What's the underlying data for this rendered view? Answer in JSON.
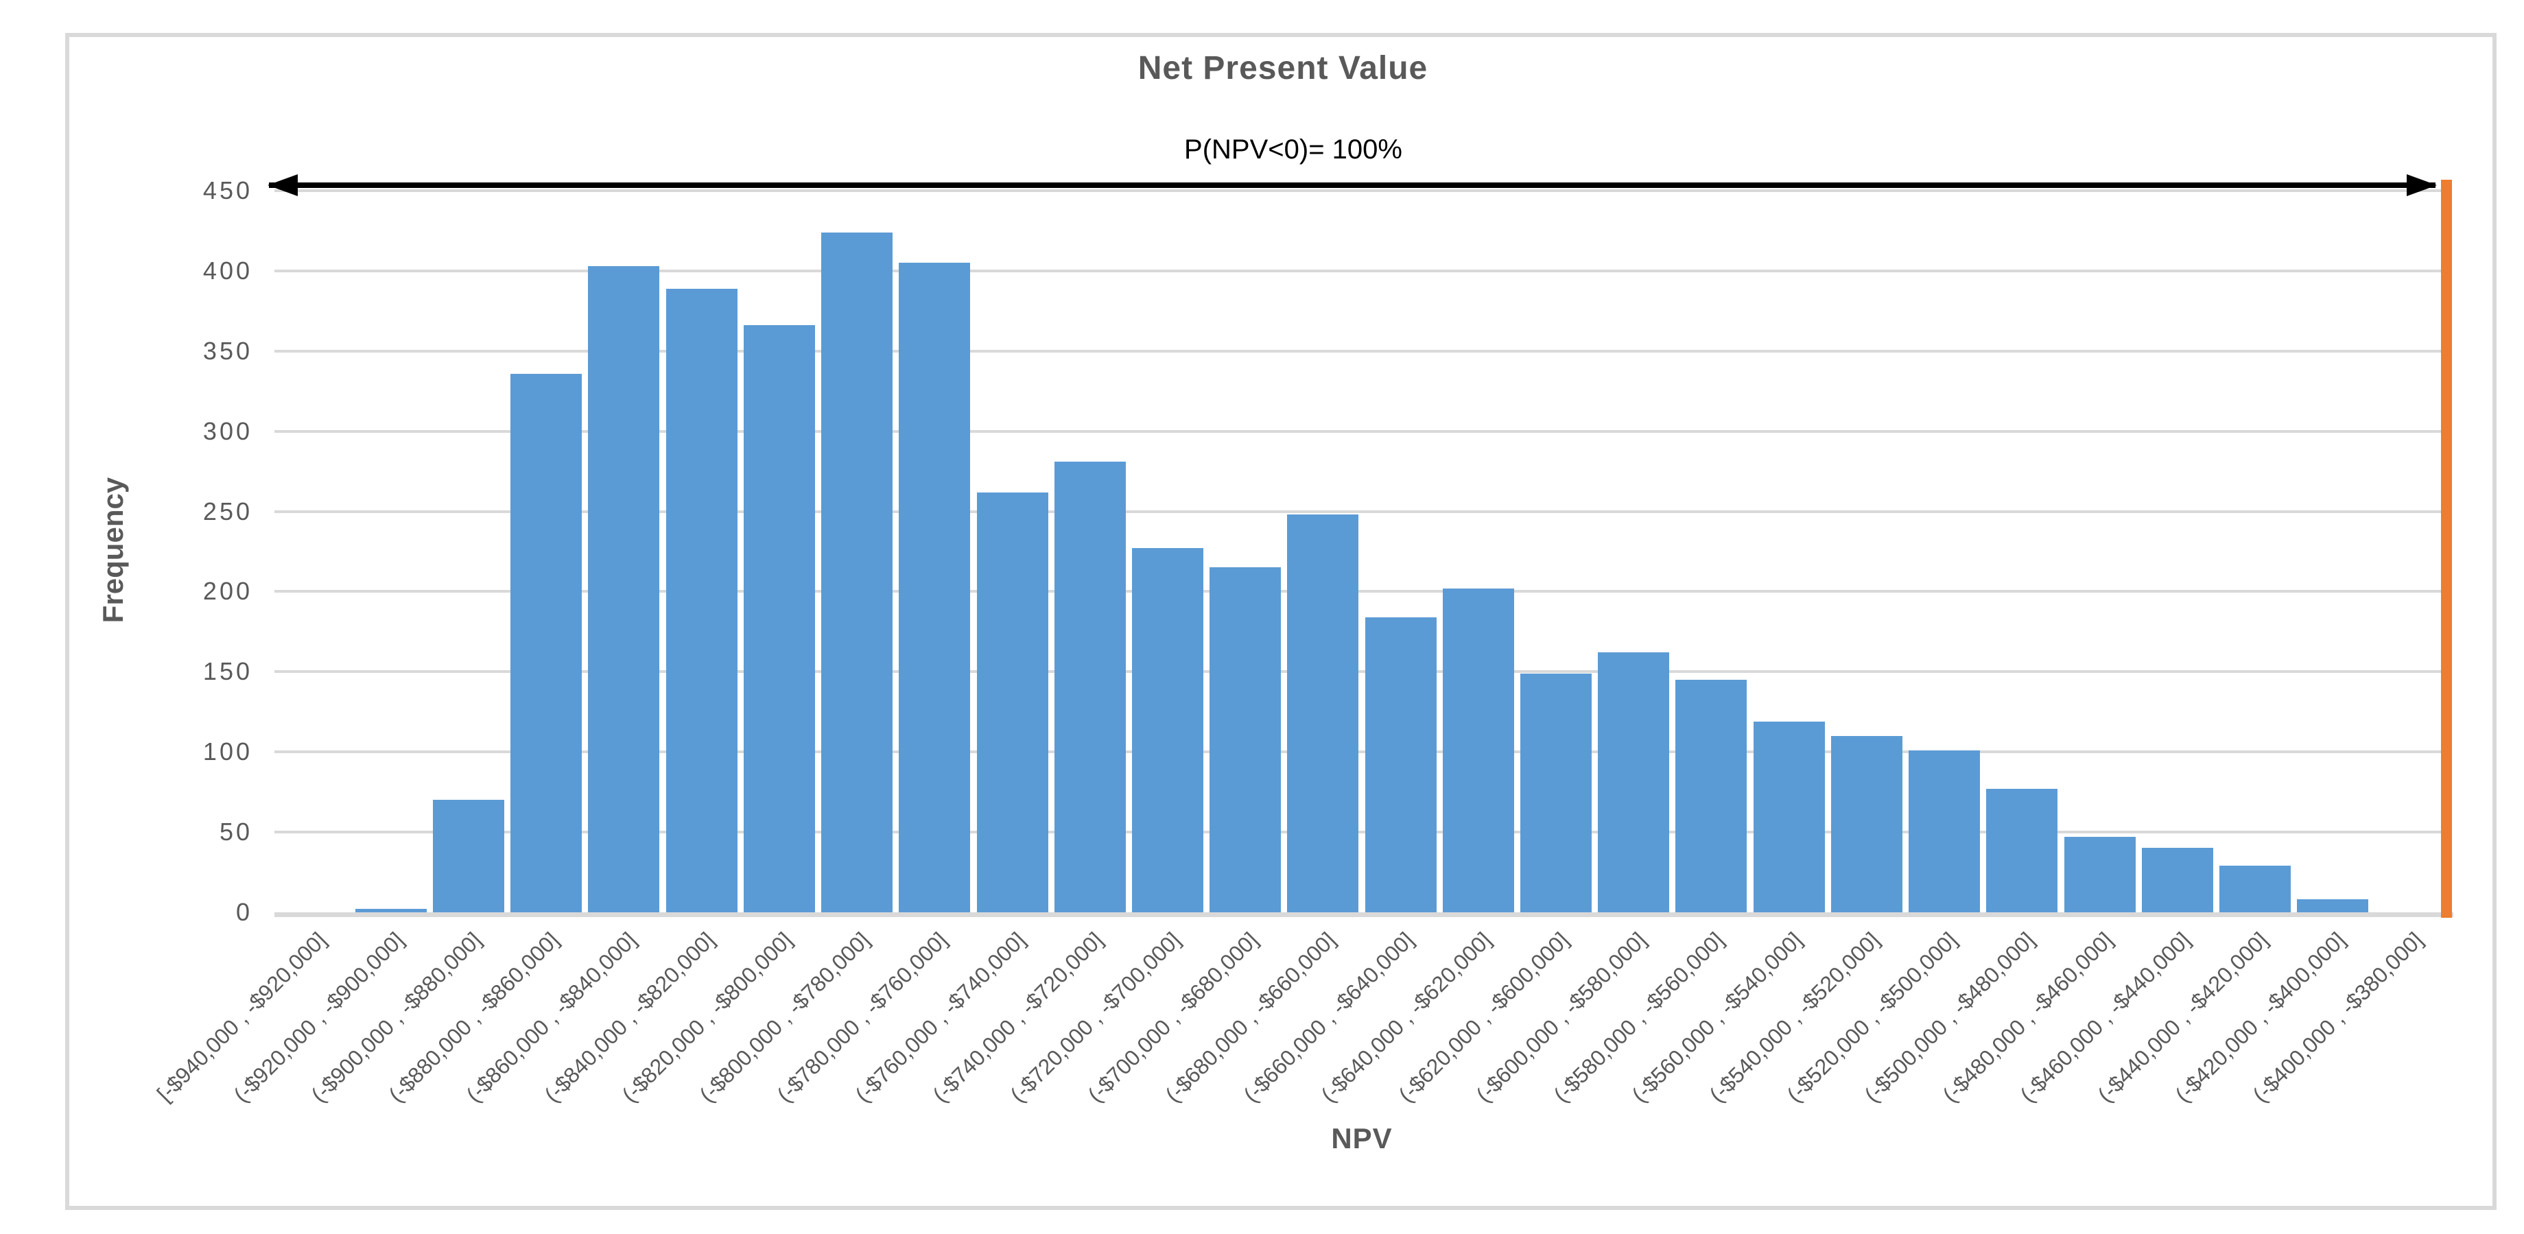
{
  "title": "Net Present Value",
  "annotation": "P(NPV<0)= 100%",
  "colors": {
    "bar": "#5B9BD5",
    "marker_line": "#ED7D31",
    "gridline": "#D9D9D9",
    "text": "#595959",
    "arrow": "#000000"
  },
  "chart_data": {
    "type": "bar",
    "title": "Net Present Value",
    "subtitle": "",
    "xlabel": "NPV",
    "ylabel": "Frequency",
    "annotation": "P(NPV<0)= 100%",
    "ylim": [
      0,
      450
    ],
    "yticks": [
      0,
      50,
      100,
      150,
      200,
      250,
      300,
      350,
      400,
      450
    ],
    "grid": true,
    "legend": "none",
    "marker": {
      "type": "vertical-line",
      "position": "right-edge-of-plot",
      "color": "#ED7D31"
    },
    "arrow_annotation": {
      "type": "double-headed-horizontal-arrow",
      "at_y": 450,
      "span": "full-plot-width",
      "label": "P(NPV<0)= 100%"
    },
    "categories": [
      "[-$940,000 , -$920,000]",
      "(-$920,000 , -$900,000]",
      "(-$900,000 , -$880,000]",
      "(-$880,000 , -$860,000]",
      "(-$860,000 , -$840,000]",
      "(-$840,000 , -$820,000]",
      "(-$820,000 , -$800,000]",
      "(-$800,000 , -$780,000]",
      "(-$780,000 , -$760,000]",
      "(-$760,000 , -$740,000]",
      "(-$740,000 , -$720,000]",
      "(-$720,000 , -$700,000]",
      "(-$700,000 , -$680,000]",
      "(-$680,000 , -$660,000]",
      "(-$660,000 , -$640,000]",
      "(-$640,000 , -$620,000]",
      "(-$620,000 , -$600,000]",
      "(-$600,000 , -$580,000]",
      "(-$580,000 , -$560,000]",
      "(-$560,000 , -$540,000]",
      "(-$540,000 , -$520,000]",
      "(-$520,000 , -$500,000]",
      "(-$500,000 , -$480,000]",
      "(-$480,000 , -$460,000]",
      "(-$460,000 , -$440,000]",
      "(-$440,000 , -$420,000]",
      "(-$420,000 , -$400,000]",
      "(-$400,000 , -$380,000]"
    ],
    "values": [
      0,
      2,
      70,
      336,
      403,
      389,
      366,
      424,
      405,
      262,
      281,
      227,
      215,
      248,
      184,
      202,
      149,
      162,
      145,
      119,
      110,
      101,
      77,
      47,
      40,
      29,
      8,
      0
    ]
  }
}
